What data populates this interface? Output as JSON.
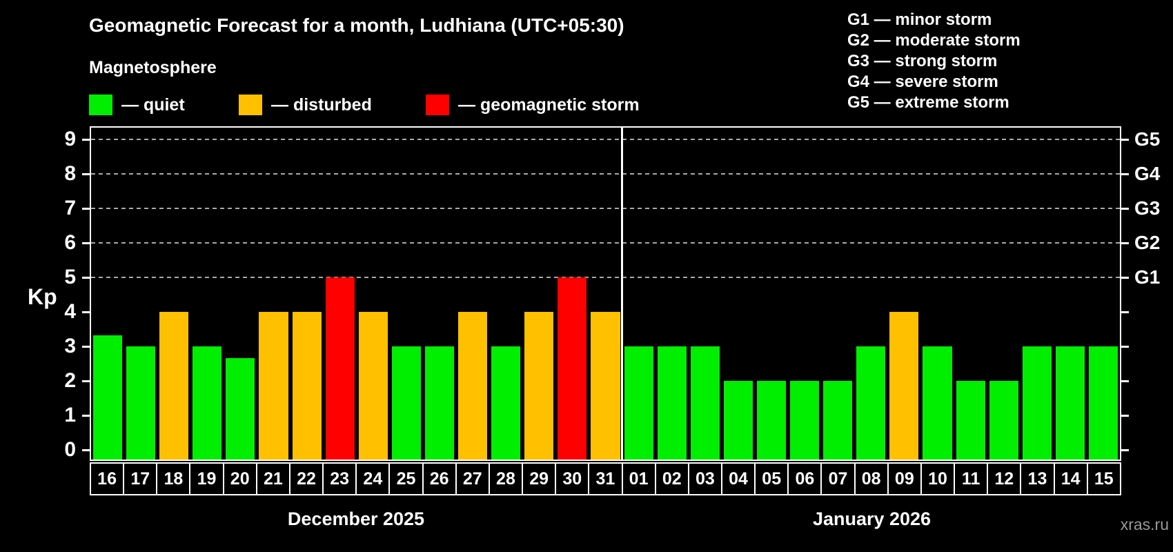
{
  "title": "Geomagnetic Forecast for a month, Ludhiana (UTC+05:30)",
  "subtitle": "Magnetosphere",
  "legend": {
    "quiet_label": "— quiet",
    "disturbed_label": "— disturbed",
    "storm_label": "— geomagnetic storm"
  },
  "g_legend_lines": [
    "G1 — minor storm",
    "G2 — moderate storm",
    "G3 — strong storm",
    "G4 — severe storm",
    "G5 — extreme storm"
  ],
  "axis": {
    "y_label": "Kp",
    "y_ticks": [
      0,
      1,
      2,
      3,
      4,
      5,
      6,
      7,
      8,
      9
    ]
  },
  "colors": {
    "quiet": "#00ee00",
    "disturbed": "#ffc000",
    "storm": "#ff0000",
    "grid": "#aaaaaa",
    "axis": "#ffffff",
    "background": "#000000"
  },
  "months": {
    "december_label": "December 2025",
    "january_label": "January 2026",
    "december_day_count": 16,
    "january_day_count": 15
  },
  "watermark": "xras.ru",
  "chart_data": {
    "type": "bar",
    "title": "Geomagnetic Forecast for a month, Ludhiana (UTC+05:30)",
    "subtitle": "Magnetosphere",
    "xlabel": "",
    "ylabel": "Kp",
    "ylim": [
      0,
      9
    ],
    "yticks": [
      0,
      1,
      2,
      3,
      4,
      5,
      6,
      7,
      8,
      9
    ],
    "grid": "horizontal dashed lines at Kp 5,6,7,8,9",
    "legend_position": "top-left",
    "right_axis_labels": [
      {
        "kp": 5,
        "label": "G1"
      },
      {
        "kp": 6,
        "label": "G2"
      },
      {
        "kp": 7,
        "label": "G3"
      },
      {
        "kp": 8,
        "label": "G4"
      },
      {
        "kp": 9,
        "label": "G5"
      }
    ],
    "month_groups": [
      {
        "label": "December 2025",
        "day_count": 16
      },
      {
        "label": "January 2026",
        "day_count": 15
      }
    ],
    "categories": [
      "16",
      "17",
      "18",
      "19",
      "20",
      "21",
      "22",
      "23",
      "24",
      "25",
      "26",
      "27",
      "28",
      "29",
      "30",
      "31",
      "01",
      "02",
      "03",
      "04",
      "05",
      "06",
      "07",
      "08",
      "09",
      "10",
      "11",
      "12",
      "13",
      "14",
      "15"
    ],
    "values": [
      3.33,
      3,
      4,
      3,
      2.67,
      4,
      4,
      5,
      4,
      3,
      3,
      4,
      3,
      4,
      5,
      4,
      3,
      3,
      3,
      2,
      2,
      2,
      2,
      3,
      4,
      3,
      2,
      2,
      3,
      3,
      3
    ],
    "statuses": [
      "quiet",
      "quiet",
      "disturbed",
      "quiet",
      "quiet",
      "disturbed",
      "disturbed",
      "storm",
      "disturbed",
      "quiet",
      "quiet",
      "disturbed",
      "quiet",
      "disturbed",
      "storm",
      "disturbed",
      "quiet",
      "quiet",
      "quiet",
      "quiet",
      "quiet",
      "quiet",
      "quiet",
      "quiet",
      "disturbed",
      "quiet",
      "quiet",
      "quiet",
      "quiet",
      "quiet",
      "quiet"
    ]
  }
}
